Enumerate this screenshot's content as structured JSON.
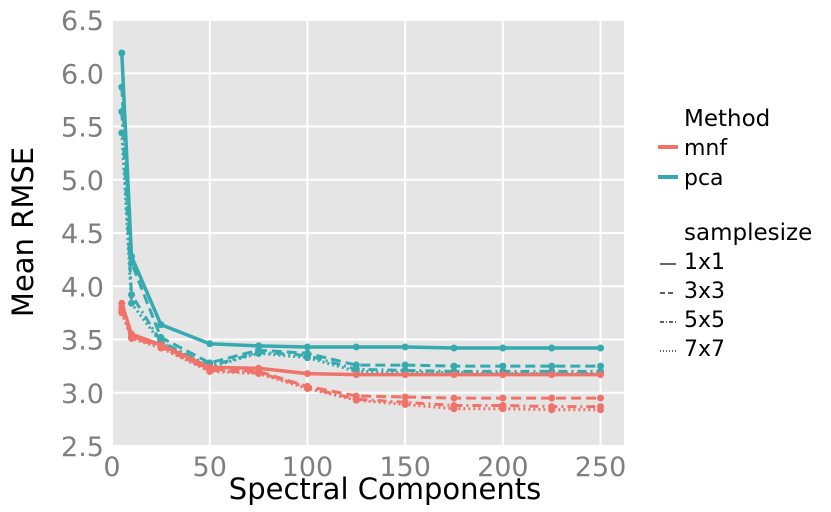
{
  "chart_data": {
    "type": "line",
    "xlabel": "Spectral Components",
    "ylabel": "Mean RMSE",
    "xlim": [
      0,
      262
    ],
    "ylim": [
      2.5,
      6.5
    ],
    "xticks": [
      "0",
      "50",
      "100",
      "150",
      "200",
      "250"
    ],
    "yticks": [
      "2.5",
      "3.0",
      "3.5",
      "4.0",
      "4.5",
      "5.0",
      "5.5",
      "6.0",
      "6.5"
    ],
    "grid": true,
    "legend_position": "right",
    "legend": {
      "method_title": "Method",
      "method_entries": [
        {
          "label": "mnf",
          "color": "#f0736a"
        },
        {
          "label": "pca",
          "color": "#35aaaf"
        }
      ],
      "samplesize_title": "samplesize",
      "samplesize_entries": [
        {
          "label": "1x1",
          "dash": "solid"
        },
        {
          "label": "3x3",
          "dash": "dashed"
        },
        {
          "label": "5x5",
          "dash": "dashdot"
        },
        {
          "label": "7x7",
          "dash": "dotted"
        }
      ]
    },
    "x": [
      5,
      10,
      25,
      50,
      75,
      100,
      125,
      150,
      175,
      200,
      225,
      250
    ],
    "series": [
      {
        "method": "mnf",
        "samplesize": "1x1",
        "dash": "solid",
        "values": [
          3.84,
          3.55,
          3.45,
          3.24,
          3.23,
          3.18,
          3.17,
          3.17,
          3.17,
          3.17,
          3.17,
          3.17
        ]
      },
      {
        "method": "mnf",
        "samplesize": "3x3",
        "dash": "dashed",
        "values": [
          3.8,
          3.53,
          3.44,
          3.22,
          3.2,
          3.06,
          2.97,
          2.96,
          2.95,
          2.95,
          2.95,
          2.95
        ]
      },
      {
        "method": "mnf",
        "samplesize": "5x5",
        "dash": "dashdot",
        "values": [
          3.77,
          3.52,
          3.43,
          3.21,
          3.19,
          3.05,
          2.94,
          2.91,
          2.88,
          2.88,
          2.87,
          2.87
        ]
      },
      {
        "method": "mnf",
        "samplesize": "7x7",
        "dash": "dotted",
        "values": [
          3.75,
          3.51,
          3.42,
          3.2,
          3.18,
          3.04,
          2.93,
          2.89,
          2.85,
          2.85,
          2.84,
          2.84
        ]
      },
      {
        "method": "pca",
        "samplesize": "1x1",
        "dash": "solid",
        "values": [
          6.19,
          4.28,
          3.64,
          3.46,
          3.44,
          3.43,
          3.43,
          3.43,
          3.42,
          3.42,
          3.42,
          3.42
        ]
      },
      {
        "method": "pca",
        "samplesize": "3x3",
        "dash": "dashed",
        "values": [
          5.87,
          4.22,
          3.52,
          3.28,
          3.4,
          3.37,
          3.26,
          3.26,
          3.25,
          3.25,
          3.25,
          3.25
        ]
      },
      {
        "method": "pca",
        "samplesize": "5x5",
        "dash": "dashdot",
        "values": [
          5.64,
          3.92,
          3.48,
          3.25,
          3.38,
          3.35,
          3.22,
          3.21,
          3.2,
          3.2,
          3.2,
          3.2
        ]
      },
      {
        "method": "pca",
        "samplesize": "7x7",
        "dash": "dotted",
        "values": [
          5.44,
          3.84,
          3.47,
          3.24,
          3.37,
          3.33,
          3.2,
          3.19,
          3.19,
          3.18,
          3.18,
          3.18
        ]
      }
    ]
  }
}
